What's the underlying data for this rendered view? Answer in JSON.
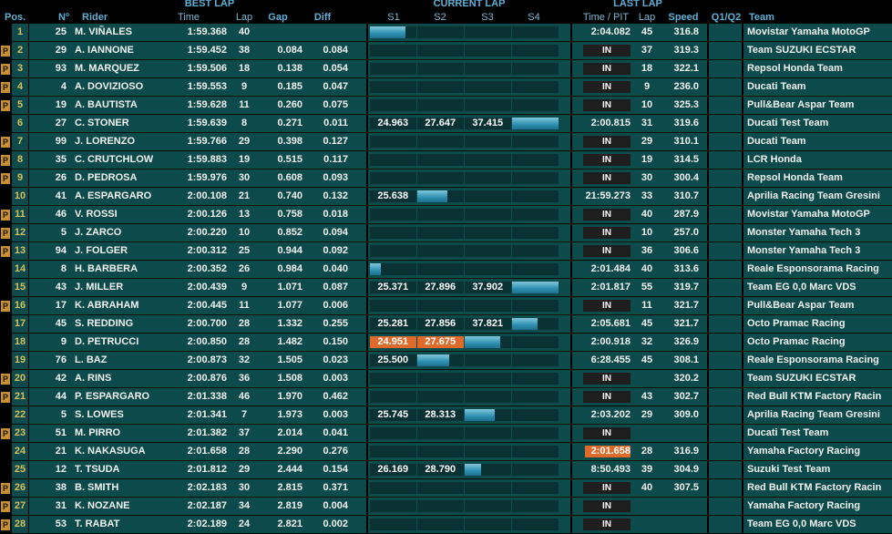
{
  "headers": {
    "best_lap": "BEST LAP",
    "current_lap": "CURRENT LAP",
    "last_lap": "LAST LAP",
    "pos": "Pos.",
    "num": "Nº",
    "rider": "Rider",
    "time": "Time",
    "lap": "Lap",
    "gap": "Gap",
    "diff": "Diff",
    "s1": "S1",
    "s2": "S2",
    "s3": "S3",
    "s4": "S4",
    "time_pit": "Time / PIT",
    "last_lap_col": "Lap",
    "speed": "Speed",
    "q": "Q1/Q2",
    "team": "Team"
  },
  "pit_marker": "P",
  "colors": {
    "accent": "#5fb0d6",
    "row": "#0d4a4b",
    "pos": "#d7c05a",
    "best": "#e06a2a",
    "pit": "#c8912a"
  },
  "rows": [
    {
      "pit": false,
      "pos": "1",
      "num": "25",
      "rider": "M. VIÑALES",
      "best": "1:59.368",
      "lap": "40",
      "gap": "",
      "diff": "",
      "s1": "",
      "s2": "",
      "s3": "",
      "s1_best": false,
      "s2_best": false,
      "progress": 0.19,
      "last": "2:04.082",
      "last_best": false,
      "in": false,
      "last_lap": "45",
      "speed": "316.8",
      "team": "Movistar Yamaha MotoGP"
    },
    {
      "pit": true,
      "pos": "2",
      "num": "29",
      "rider": "A. IANNONE",
      "best": "1:59.452",
      "lap": "38",
      "gap": "0.084",
      "diff": "0.084",
      "s1": "",
      "s2": "",
      "s3": "",
      "s1_best": false,
      "s2_best": false,
      "progress": 0,
      "last": "",
      "last_best": false,
      "in": true,
      "last_lap": "37",
      "speed": "319.3",
      "team": "Team SUZUKI ECSTAR"
    },
    {
      "pit": true,
      "pos": "3",
      "num": "93",
      "rider": "M. MARQUEZ",
      "best": "1:59.506",
      "lap": "18",
      "gap": "0.138",
      "diff": "0.054",
      "s1": "",
      "s2": "",
      "s3": "",
      "s1_best": false,
      "s2_best": false,
      "progress": 0,
      "last": "",
      "last_best": false,
      "in": true,
      "last_lap": "18",
      "speed": "322.1",
      "team": "Repsol Honda Team"
    },
    {
      "pit": true,
      "pos": "4",
      "num": "4",
      "rider": "A. DOVIZIOSO",
      "best": "1:59.553",
      "lap": "9",
      "gap": "0.185",
      "diff": "0.047",
      "s1": "",
      "s2": "",
      "s3": "",
      "s1_best": false,
      "s2_best": false,
      "progress": 0,
      "last": "",
      "last_best": false,
      "in": true,
      "last_lap": "9",
      "speed": "236.0",
      "team": "Ducati Team"
    },
    {
      "pit": true,
      "pos": "5",
      "num": "19",
      "rider": "A. BAUTISTA",
      "best": "1:59.628",
      "lap": "11",
      "gap": "0.260",
      "diff": "0.075",
      "s1": "",
      "s2": "",
      "s3": "",
      "s1_best": false,
      "s2_best": false,
      "progress": 0,
      "last": "",
      "last_best": false,
      "in": true,
      "last_lap": "10",
      "speed": "325.3",
      "team": "Pull&Bear Aspar Team"
    },
    {
      "pit": false,
      "pos": "6",
      "num": "27",
      "rider": "C. STONER",
      "best": "1:59.639",
      "lap": "8",
      "gap": "0.271",
      "diff": "0.011",
      "s1": "24.963",
      "s2": "27.647",
      "s3": "37.415",
      "s1_best": false,
      "s2_best": false,
      "progress": 1.0,
      "last": "2:00.815",
      "last_best": false,
      "in": false,
      "last_lap": "31",
      "speed": "319.6",
      "team": "Ducati Test Team"
    },
    {
      "pit": true,
      "pos": "7",
      "num": "99",
      "rider": "J. LORENZO",
      "best": "1:59.766",
      "lap": "29",
      "gap": "0.398",
      "diff": "0.127",
      "s1": "",
      "s2": "",
      "s3": "",
      "s1_best": false,
      "s2_best": false,
      "progress": 0,
      "last": "",
      "last_best": false,
      "in": true,
      "last_lap": "29",
      "speed": "310.1",
      "team": "Ducati Team"
    },
    {
      "pit": true,
      "pos": "8",
      "num": "35",
      "rider": "C. CRUTCHLOW",
      "best": "1:59.883",
      "lap": "19",
      "gap": "0.515",
      "diff": "0.117",
      "s1": "",
      "s2": "",
      "s3": "",
      "s1_best": false,
      "s2_best": false,
      "progress": 0,
      "last": "",
      "last_best": false,
      "in": true,
      "last_lap": "19",
      "speed": "314.5",
      "team": "LCR Honda"
    },
    {
      "pit": true,
      "pos": "9",
      "num": "26",
      "rider": "D. PEDROSA",
      "best": "1:59.976",
      "lap": "30",
      "gap": "0.608",
      "diff": "0.093",
      "s1": "",
      "s2": "",
      "s3": "",
      "s1_best": false,
      "s2_best": false,
      "progress": 0,
      "last": "",
      "last_best": false,
      "in": true,
      "last_lap": "30",
      "speed": "300.4",
      "team": "Repsol Honda Team"
    },
    {
      "pit": false,
      "pos": "10",
      "num": "41",
      "rider": "A. ESPARGARO",
      "best": "2:00.108",
      "lap": "21",
      "gap": "0.740",
      "diff": "0.132",
      "s1": "25.638",
      "s2": "",
      "s3": "",
      "s1_best": false,
      "s2_best": false,
      "progress": 0.41,
      "last": "21:59.273",
      "last_best": false,
      "in": false,
      "last_lap": "33",
      "speed": "310.7",
      "team": "Aprilia Racing Team Gresini"
    },
    {
      "pit": true,
      "pos": "11",
      "num": "46",
      "rider": "V. ROSSI",
      "best": "2:00.126",
      "lap": "13",
      "gap": "0.758",
      "diff": "0.018",
      "s1": "",
      "s2": "",
      "s3": "",
      "s1_best": false,
      "s2_best": false,
      "progress": 0,
      "last": "",
      "last_best": false,
      "in": true,
      "last_lap": "40",
      "speed": "287.9",
      "team": "Movistar Yamaha MotoGP"
    },
    {
      "pit": true,
      "pos": "12",
      "num": "5",
      "rider": "J. ZARCO",
      "best": "2:00.220",
      "lap": "10",
      "gap": "0.852",
      "diff": "0.094",
      "s1": "",
      "s2": "",
      "s3": "",
      "s1_best": false,
      "s2_best": false,
      "progress": 0,
      "last": "",
      "last_best": false,
      "in": true,
      "last_lap": "10",
      "speed": "257.0",
      "team": "Monster Yamaha Tech 3"
    },
    {
      "pit": true,
      "pos": "13",
      "num": "94",
      "rider": "J. FOLGER",
      "best": "2:00.312",
      "lap": "25",
      "gap": "0.944",
      "diff": "0.092",
      "s1": "",
      "s2": "",
      "s3": "",
      "s1_best": false,
      "s2_best": false,
      "progress": 0,
      "last": "",
      "last_best": false,
      "in": true,
      "last_lap": "36",
      "speed": "306.6",
      "team": "Monster Yamaha Tech 3"
    },
    {
      "pit": false,
      "pos": "14",
      "num": "8",
      "rider": "H. BARBERA",
      "best": "2:00.352",
      "lap": "26",
      "gap": "0.984",
      "diff": "0.040",
      "s1": "",
      "s2": "",
      "s3": "",
      "s1_best": false,
      "s2_best": false,
      "progress": 0.06,
      "last": "2:01.484",
      "last_best": false,
      "in": false,
      "last_lap": "40",
      "speed": "313.6",
      "team": "Reale Esponsorama Racing"
    },
    {
      "pit": false,
      "pos": "15",
      "num": "43",
      "rider": "J. MILLER",
      "best": "2:00.439",
      "lap": "9",
      "gap": "1.071",
      "diff": "0.087",
      "s1": "25.371",
      "s2": "27.896",
      "s3": "37.902",
      "s1_best": false,
      "s2_best": false,
      "progress": 1.0,
      "last": "2:01.817",
      "last_best": false,
      "in": false,
      "last_lap": "55",
      "speed": "319.7",
      "team": "Team EG 0,0 Marc VDS"
    },
    {
      "pit": true,
      "pos": "16",
      "num": "17",
      "rider": "K. ABRAHAM",
      "best": "2:00.445",
      "lap": "11",
      "gap": "1.077",
      "diff": "0.006",
      "s1": "",
      "s2": "",
      "s3": "",
      "s1_best": false,
      "s2_best": false,
      "progress": 0,
      "last": "",
      "last_best": false,
      "in": true,
      "last_lap": "11",
      "speed": "321.7",
      "team": "Pull&Bear Aspar Team"
    },
    {
      "pit": false,
      "pos": "17",
      "num": "45",
      "rider": "S. REDDING",
      "best": "2:00.700",
      "lap": "28",
      "gap": "1.332",
      "diff": "0.255",
      "s1": "25.281",
      "s2": "27.856",
      "s3": "37.821",
      "s1_best": false,
      "s2_best": false,
      "progress": 0.89,
      "last": "2:05.681",
      "last_best": false,
      "in": false,
      "last_lap": "45",
      "speed": "321.7",
      "team": "Octo Pramac Racing"
    },
    {
      "pit": false,
      "pos": "18",
      "num": "9",
      "rider": "D. PETRUCCI",
      "best": "2:00.850",
      "lap": "28",
      "gap": "1.482",
      "diff": "0.150",
      "s1": "24.951",
      "s2": "27.675",
      "s3": "",
      "s1_best": true,
      "s2_best": true,
      "progress": 0.69,
      "last": "2:00.918",
      "last_best": false,
      "in": false,
      "last_lap": "32",
      "speed": "326.9",
      "team": "Octo Pramac Racing"
    },
    {
      "pit": false,
      "pos": "19",
      "num": "76",
      "rider": "L. BAZ",
      "best": "2:00.873",
      "lap": "32",
      "gap": "1.505",
      "diff": "0.023",
      "s1": "25.500",
      "s2": "",
      "s3": "",
      "s1_best": false,
      "s2_best": false,
      "progress": 0.42,
      "last": "6:28.455",
      "last_best": false,
      "in": false,
      "last_lap": "45",
      "speed": "308.1",
      "team": "Reale Esponsorama Racing"
    },
    {
      "pit": true,
      "pos": "20",
      "num": "42",
      "rider": "A. RINS",
      "best": "2:00.876",
      "lap": "36",
      "gap": "1.508",
      "diff": "0.003",
      "s1": "",
      "s2": "",
      "s3": "",
      "s1_best": false,
      "s2_best": false,
      "progress": 0,
      "last": "",
      "last_best": false,
      "in": true,
      "last_lap": "",
      "speed": "320.2",
      "team": "Team SUZUKI ECSTAR"
    },
    {
      "pit": true,
      "pos": "21",
      "num": "44",
      "rider": "P. ESPARGARO",
      "best": "2:01.338",
      "lap": "46",
      "gap": "1.970",
      "diff": "0.462",
      "s1": "",
      "s2": "",
      "s3": "",
      "s1_best": false,
      "s2_best": false,
      "progress": 0,
      "last": "",
      "last_best": false,
      "in": true,
      "last_lap": "43",
      "speed": "302.7",
      "team": "Red Bull KTM Factory Racin"
    },
    {
      "pit": false,
      "pos": "22",
      "num": "5",
      "rider": "S. LOWES",
      "best": "2:01.341",
      "lap": "7",
      "gap": "1.973",
      "diff": "0.003",
      "s1": "25.745",
      "s2": "28.313",
      "s3": "",
      "s1_best": false,
      "s2_best": false,
      "progress": 0.66,
      "last": "2:03.202",
      "last_best": false,
      "in": false,
      "last_lap": "29",
      "speed": "309.0",
      "team": "Aprilia Racing Team Gresini"
    },
    {
      "pit": true,
      "pos": "23",
      "num": "51",
      "rider": "M. PIRRO",
      "best": "2:01.382",
      "lap": "37",
      "gap": "2.014",
      "diff": "0.041",
      "s1": "",
      "s2": "",
      "s3": "",
      "s1_best": false,
      "s2_best": false,
      "progress": 0,
      "last": "",
      "last_best": false,
      "in": true,
      "last_lap": "",
      "speed": "",
      "team": "Ducati Test Team"
    },
    {
      "pit": false,
      "pos": "24",
      "num": "21",
      "rider": "K. NAKASUGA",
      "best": "2:01.658",
      "lap": "28",
      "gap": "2.290",
      "diff": "0.276",
      "s1": "",
      "s2": "",
      "s3": "",
      "s1_best": false,
      "s2_best": false,
      "progress": 0,
      "last": "2:01.658",
      "last_best": true,
      "in": false,
      "last_lap": "28",
      "speed": "316.9",
      "team": "Yamaha Factory Racing"
    },
    {
      "pit": false,
      "pos": "25",
      "num": "12",
      "rider": "T. TSUDA",
      "best": "2:01.812",
      "lap": "29",
      "gap": "2.444",
      "diff": "0.154",
      "s1": "26.169",
      "s2": "28.790",
      "s3": "",
      "s1_best": false,
      "s2_best": false,
      "progress": 0.59,
      "last": "8:50.493",
      "last_best": false,
      "in": false,
      "last_lap": "39",
      "speed": "304.9",
      "team": "Suzuki Test Team"
    },
    {
      "pit": true,
      "pos": "26",
      "num": "38",
      "rider": "B. SMITH",
      "best": "2:02.183",
      "lap": "30",
      "gap": "2.815",
      "diff": "0.371",
      "s1": "",
      "s2": "",
      "s3": "",
      "s1_best": false,
      "s2_best": false,
      "progress": 0,
      "last": "",
      "last_best": false,
      "in": true,
      "last_lap": "40",
      "speed": "307.5",
      "team": "Red Bull KTM Factory Racin"
    },
    {
      "pit": true,
      "pos": "27",
      "num": "31",
      "rider": "K. NOZANE",
      "best": "2:02.187",
      "lap": "34",
      "gap": "2.819",
      "diff": "0.004",
      "s1": "",
      "s2": "",
      "s3": "",
      "s1_best": false,
      "s2_best": false,
      "progress": 0,
      "last": "",
      "last_best": false,
      "in": true,
      "last_lap": "",
      "speed": "",
      "team": "Yamaha Factory Racing"
    },
    {
      "pit": true,
      "pos": "28",
      "num": "53",
      "rider": "T. RABAT",
      "best": "2:02.189",
      "lap": "24",
      "gap": "2.821",
      "diff": "0.002",
      "s1": "",
      "s2": "",
      "s3": "",
      "s1_best": false,
      "s2_best": false,
      "progress": 0,
      "last": "",
      "last_best": false,
      "in": true,
      "last_lap": "",
      "speed": "",
      "team": "Team EG 0,0 Marc VDS"
    }
  ],
  "in_label": "IN"
}
